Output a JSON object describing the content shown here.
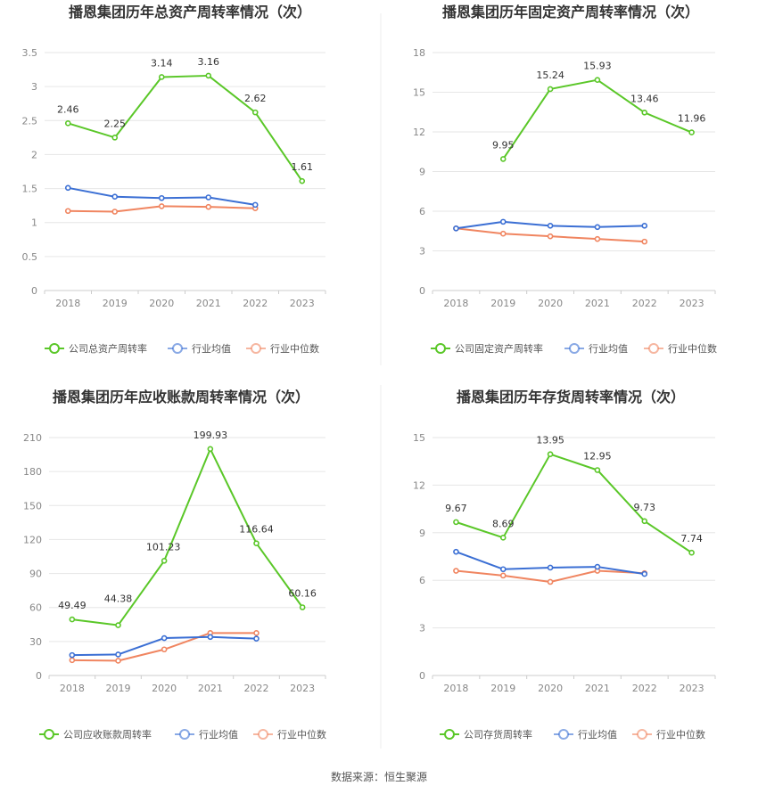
{
  "footer": {
    "source": "数据来源：恒生聚源"
  },
  "colors": {
    "company": "#5ac728",
    "average": "#3b6fd4",
    "median": "#f08560",
    "grid": "#e6e6e6",
    "axis": "#cccccc"
  },
  "chart_data": [
    {
      "type": "line",
      "title": "播恩集团历年总资产周转率情况（次）",
      "categories": [
        "2018",
        "2019",
        "2020",
        "2021",
        "2022",
        "2023"
      ],
      "yticks": [
        "0",
        "0.5",
        "1",
        "1.5",
        "2",
        "2.5",
        "3",
        "3.5"
      ],
      "ylim": [
        0,
        3.5
      ],
      "series": [
        {
          "name": "公司总资产周转率",
          "role": "company",
          "values": [
            2.46,
            2.25,
            3.14,
            3.16,
            2.62,
            1.61
          ],
          "labels": [
            "2.46",
            "2.25",
            "3.14",
            "3.16",
            "2.62",
            "1.61"
          ]
        },
        {
          "name": "行业均值",
          "role": "average",
          "values": [
            1.51,
            1.38,
            1.36,
            1.37,
            1.26,
            null
          ]
        },
        {
          "name": "行业中位数",
          "role": "median",
          "values": [
            1.17,
            1.16,
            1.24,
            1.23,
            1.21,
            null
          ]
        }
      ]
    },
    {
      "type": "line",
      "title": "播恩集团历年固定资产周转率情况（次）",
      "categories": [
        "2018",
        "2019",
        "2020",
        "2021",
        "2022",
        "2023"
      ],
      "yticks": [
        "0",
        "3",
        "6",
        "9",
        "12",
        "15",
        "18"
      ],
      "ylim": [
        0,
        18
      ],
      "series": [
        {
          "name": "公司固定资产周转率",
          "role": "company",
          "values": [
            null,
            9.95,
            15.24,
            15.93,
            13.46,
            11.96
          ],
          "labels": [
            null,
            "9.95",
            "15.24",
            "15.93",
            "13.46",
            "11.96"
          ]
        },
        {
          "name": "行业均值",
          "role": "average",
          "values": [
            4.7,
            5.2,
            4.9,
            4.8,
            4.9,
            null
          ]
        },
        {
          "name": "行业中位数",
          "role": "median",
          "values": [
            4.7,
            4.3,
            4.1,
            3.9,
            3.7,
            null
          ]
        }
      ]
    },
    {
      "type": "line",
      "title": "播恩集团历年应收账款周转率情况（次）",
      "categories": [
        "2018",
        "2019",
        "2020",
        "2021",
        "2022",
        "2023"
      ],
      "yticks": [
        "0",
        "30",
        "60",
        "90",
        "120",
        "150",
        "180",
        "210"
      ],
      "ylim": [
        0,
        210
      ],
      "series": [
        {
          "name": "公司应收账款周转率",
          "role": "company",
          "values": [
            49.49,
            44.38,
            101.23,
            199.93,
            116.64,
            60.16
          ],
          "labels": [
            "49.49",
            "44.38",
            "101.23",
            "199.93",
            "116.64",
            "60.16"
          ]
        },
        {
          "name": "行业均值",
          "role": "average",
          "values": [
            18,
            18.5,
            33,
            34,
            32.5,
            null
          ]
        },
        {
          "name": "行业中位数",
          "role": "median",
          "values": [
            13.5,
            13,
            23,
            37.5,
            37.5,
            null
          ]
        }
      ]
    },
    {
      "type": "line",
      "title": "播恩集团历年存货周转率情况（次）",
      "categories": [
        "2018",
        "2019",
        "2020",
        "2021",
        "2022",
        "2023"
      ],
      "yticks": [
        "0",
        "3",
        "6",
        "9",
        "12",
        "15"
      ],
      "ylim": [
        0,
        15
      ],
      "series": [
        {
          "name": "公司存货周转率",
          "role": "company",
          "values": [
            9.67,
            8.69,
            13.95,
            12.95,
            9.73,
            7.74
          ],
          "labels": [
            "9.67",
            "8.69",
            "13.95",
            "12.95",
            "9.73",
            "7.74"
          ]
        },
        {
          "name": "行业均值",
          "role": "average",
          "values": [
            7.8,
            6.7,
            6.8,
            6.85,
            6.4,
            null
          ]
        },
        {
          "name": "行业中位数",
          "role": "median",
          "values": [
            6.6,
            6.3,
            5.9,
            6.6,
            6.45,
            null
          ]
        }
      ]
    }
  ]
}
